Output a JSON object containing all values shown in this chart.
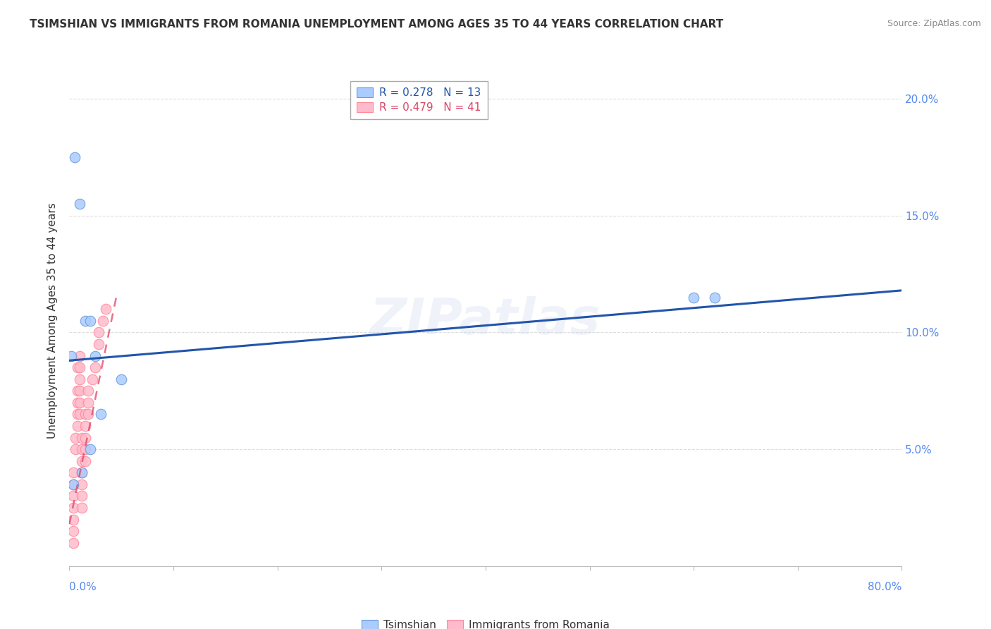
{
  "title": "TSIMSHIAN VS IMMIGRANTS FROM ROMANIA UNEMPLOYMENT AMONG AGES 35 TO 44 YEARS CORRELATION CHART",
  "source": "Source: ZipAtlas.com",
  "ylabel": "Unemployment Among Ages 35 to 44 years",
  "legend_blue_r": "R = 0.278",
  "legend_blue_n": "N = 13",
  "legend_pink_r": "R = 0.479",
  "legend_pink_n": "N = 41",
  "watermark": "ZIPatlas",
  "xlim": [
    0,
    0.8
  ],
  "ylim": [
    0,
    0.21
  ],
  "yticks": [
    0.05,
    0.1,
    0.15,
    0.2
  ],
  "ytick_labels": [
    "5.0%",
    "10.0%",
    "15.0%",
    "20.0%"
  ],
  "blue_fill": "#aaccff",
  "pink_fill": "#ffbbcc",
  "blue_edge": "#6699dd",
  "pink_edge": "#ff8899",
  "blue_line_color": "#2255aa",
  "pink_line_color": "#dd4466",
  "tsimshian_x": [
    0.005,
    0.01,
    0.012,
    0.015,
    0.02,
    0.02,
    0.025,
    0.03,
    0.05,
    0.6,
    0.62,
    0.002,
    0.004
  ],
  "tsimshian_y": [
    0.175,
    0.155,
    0.04,
    0.105,
    0.105,
    0.05,
    0.09,
    0.065,
    0.08,
    0.115,
    0.115,
    0.09,
    0.035
  ],
  "romania_x": [
    0.004,
    0.004,
    0.004,
    0.004,
    0.004,
    0.004,
    0.004,
    0.006,
    0.006,
    0.008,
    0.008,
    0.008,
    0.008,
    0.008,
    0.01,
    0.01,
    0.01,
    0.01,
    0.01,
    0.01,
    0.012,
    0.012,
    0.012,
    0.012,
    0.012,
    0.012,
    0.012,
    0.015,
    0.015,
    0.015,
    0.015,
    0.015,
    0.018,
    0.018,
    0.018,
    0.022,
    0.025,
    0.028,
    0.028,
    0.032,
    0.035
  ],
  "romania_y": [
    0.04,
    0.035,
    0.03,
    0.025,
    0.02,
    0.015,
    0.01,
    0.055,
    0.05,
    0.085,
    0.075,
    0.07,
    0.065,
    0.06,
    0.09,
    0.085,
    0.08,
    0.075,
    0.07,
    0.065,
    0.055,
    0.05,
    0.045,
    0.04,
    0.035,
    0.03,
    0.025,
    0.065,
    0.06,
    0.055,
    0.05,
    0.045,
    0.075,
    0.07,
    0.065,
    0.08,
    0.085,
    0.1,
    0.095,
    0.105,
    0.11
  ],
  "blue_trend_x": [
    0.0,
    0.8
  ],
  "blue_trend_y": [
    0.088,
    0.118
  ],
  "pink_trend_x": [
    0.0,
    0.045
  ],
  "pink_trend_y": [
    0.018,
    0.115
  ],
  "background_color": "#ffffff",
  "grid_color": "#dddddd",
  "title_color": "#333333",
  "title_fontsize": 11,
  "tick_color": "#5588ee",
  "source_color": "#888888"
}
